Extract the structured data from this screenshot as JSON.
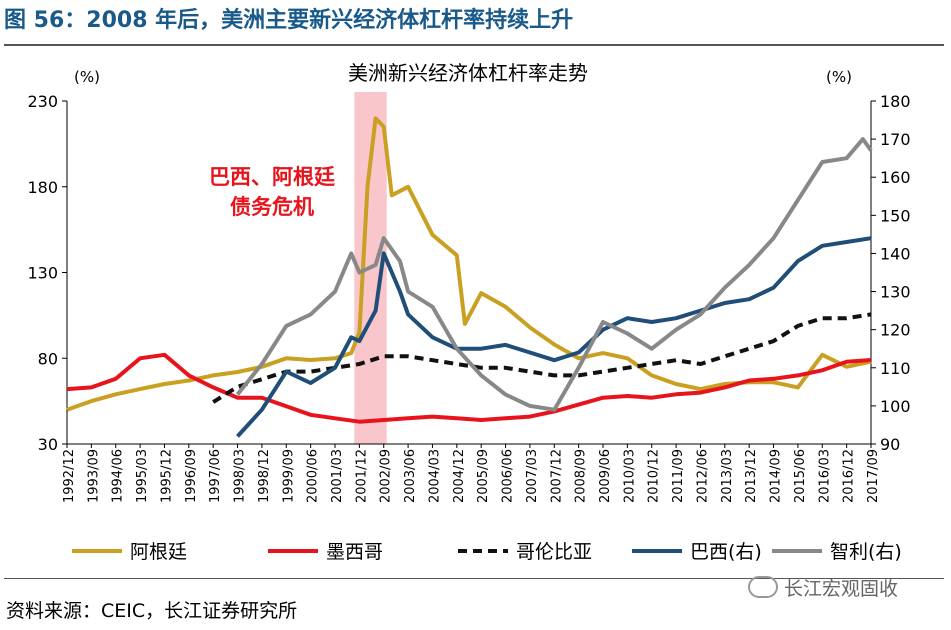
{
  "figure_title": "图 56：2008 年后，美洲主要新兴经济体杠杆率持续上升",
  "source": "资料来源：CEIC，长江证券研究所",
  "watermark": "长江宏观固收",
  "chart_data": {
    "type": "line",
    "title": "美洲新兴经济体杠杆率走势",
    "y_left_unit": "(%)",
    "y_right_unit": "(%)",
    "y_left": {
      "min": 30,
      "max": 230,
      "ticks": [
        30,
        80,
        130,
        180,
        230
      ]
    },
    "y_right": {
      "min": 90,
      "max": 180,
      "ticks": [
        90,
        100,
        110,
        120,
        130,
        140,
        150,
        160,
        170,
        180
      ]
    },
    "x_ticks": [
      "1992/12",
      "1993/09",
      "1994/06",
      "1995/03",
      "1995/12",
      "1996/09",
      "1997/06",
      "1998/03",
      "1998/12",
      "1999/09",
      "2000/06",
      "2001/03",
      "2001/12",
      "2002/09",
      "2003/06",
      "2004/03",
      "2004/12",
      "2005/09",
      "2006/06",
      "2007/03",
      "2007/12",
      "2008/09",
      "2009/06",
      "2010/03",
      "2010/12",
      "2011/09",
      "2012/06",
      "2013/03",
      "2013/12",
      "2014/09",
      "2015/06",
      "2016/03",
      "2016/12",
      "2017/09"
    ],
    "annotation": {
      "text_line1": "巴西、阿根廷",
      "text_line2": "债务危机",
      "color": "#e8141c",
      "band_start": "2001/12",
      "band_end": "2002/09",
      "band_color": "#f7b8bf"
    },
    "series": [
      {
        "name": "阿根廷",
        "axis": "left",
        "color": "#c9a021",
        "dash": false,
        "points": [
          [
            "1992/12",
            50
          ],
          [
            "1993/09",
            55
          ],
          [
            "1994/06",
            59
          ],
          [
            "1995/03",
            62
          ],
          [
            "1995/12",
            65
          ],
          [
            "1996/09",
            67
          ],
          [
            "1997/06",
            70
          ],
          [
            "1998/03",
            72
          ],
          [
            "1998/12",
            75
          ],
          [
            "1999/09",
            80
          ],
          [
            "2000/06",
            79
          ],
          [
            "2001/03",
            80
          ],
          [
            "2001/09",
            83
          ],
          [
            "2001/12",
            95
          ],
          [
            "2002/03",
            180
          ],
          [
            "2002/06",
            220
          ],
          [
            "2002/09",
            215
          ],
          [
            "2002/12",
            175
          ],
          [
            "2003/06",
            180
          ],
          [
            "2004/03",
            152
          ],
          [
            "2004/12",
            140
          ],
          [
            "2005/03",
            100
          ],
          [
            "2005/09",
            118
          ],
          [
            "2006/06",
            110
          ],
          [
            "2007/03",
            98
          ],
          [
            "2007/12",
            88
          ],
          [
            "2008/09",
            80
          ],
          [
            "2009/06",
            83
          ],
          [
            "2010/03",
            80
          ],
          [
            "2010/12",
            70
          ],
          [
            "2011/09",
            65
          ],
          [
            "2012/06",
            62
          ],
          [
            "2013/03",
            65
          ],
          [
            "2013/12",
            66
          ],
          [
            "2014/09",
            66
          ],
          [
            "2015/06",
            63
          ],
          [
            "2016/03",
            82
          ],
          [
            "2016/12",
            75
          ],
          [
            "2017/09",
            78
          ]
        ]
      },
      {
        "name": "墨西哥",
        "axis": "left",
        "color": "#e8141c",
        "dash": false,
        "points": [
          [
            "1992/12",
            62
          ],
          [
            "1993/09",
            63
          ],
          [
            "1994/06",
            68
          ],
          [
            "1995/03",
            80
          ],
          [
            "1995/12",
            82
          ],
          [
            "1996/09",
            70
          ],
          [
            "1997/06",
            63
          ],
          [
            "1998/03",
            57
          ],
          [
            "1998/12",
            57
          ],
          [
            "1999/09",
            52
          ],
          [
            "2000/06",
            47
          ],
          [
            "2001/03",
            45
          ],
          [
            "2001/12",
            43
          ],
          [
            "2002/09",
            44
          ],
          [
            "2003/06",
            45
          ],
          [
            "2004/03",
            46
          ],
          [
            "2004/12",
            45
          ],
          [
            "2005/09",
            44
          ],
          [
            "2006/06",
            45
          ],
          [
            "2007/03",
            46
          ],
          [
            "2007/12",
            49
          ],
          [
            "2008/09",
            53
          ],
          [
            "2009/06",
            57
          ],
          [
            "2010/03",
            58
          ],
          [
            "2010/12",
            57
          ],
          [
            "2011/09",
            59
          ],
          [
            "2012/06",
            60
          ],
          [
            "2013/03",
            63
          ],
          [
            "2013/12",
            67
          ],
          [
            "2014/09",
            68
          ],
          [
            "2015/06",
            70
          ],
          [
            "2016/03",
            73
          ],
          [
            "2016/12",
            78
          ],
          [
            "2017/09",
            79
          ]
        ]
      },
      {
        "name": "哥伦比亚",
        "axis": "right",
        "color": "#111111",
        "dash": true,
        "points": [
          [
            "1997/06",
            101
          ],
          [
            "1998/03",
            105
          ],
          [
            "1998/12",
            107
          ],
          [
            "1999/09",
            109
          ],
          [
            "2000/06",
            109
          ],
          [
            "2001/03",
            110
          ],
          [
            "2001/12",
            111
          ],
          [
            "2002/09",
            113
          ],
          [
            "2003/06",
            113
          ],
          [
            "2004/03",
            112
          ],
          [
            "2004/12",
            111
          ],
          [
            "2005/09",
            110
          ],
          [
            "2006/06",
            110
          ],
          [
            "2007/03",
            109
          ],
          [
            "2007/12",
            108
          ],
          [
            "2008/09",
            108
          ],
          [
            "2009/06",
            109
          ],
          [
            "2010/03",
            110
          ],
          [
            "2010/12",
            111
          ],
          [
            "2011/09",
            112
          ],
          [
            "2012/06",
            111
          ],
          [
            "2013/03",
            113
          ],
          [
            "2013/12",
            115
          ],
          [
            "2014/09",
            117
          ],
          [
            "2015/06",
            121
          ],
          [
            "2016/03",
            123
          ],
          [
            "2016/12",
            123
          ],
          [
            "2017/09",
            124
          ]
        ]
      },
      {
        "name": "巴西(右)",
        "axis": "right",
        "color": "#1f4e79",
        "dash": false,
        "points": [
          [
            "1998/03",
            92
          ],
          [
            "1998/12",
            99
          ],
          [
            "1999/09",
            109
          ],
          [
            "2000/06",
            106
          ],
          [
            "2001/03",
            110
          ],
          [
            "2001/09",
            118
          ],
          [
            "2001/12",
            117
          ],
          [
            "2002/06",
            125
          ],
          [
            "2002/09",
            140
          ],
          [
            "2003/03",
            130
          ],
          [
            "2003/06",
            124
          ],
          [
            "2004/03",
            118
          ],
          [
            "2004/12",
            115
          ],
          [
            "2005/09",
            115
          ],
          [
            "2006/06",
            116
          ],
          [
            "2007/03",
            114
          ],
          [
            "2007/12",
            112
          ],
          [
            "2008/09",
            114
          ],
          [
            "2009/06",
            120
          ],
          [
            "2010/03",
            123
          ],
          [
            "2010/12",
            122
          ],
          [
            "2011/09",
            123
          ],
          [
            "2012/06",
            125
          ],
          [
            "2013/03",
            127
          ],
          [
            "2013/12",
            128
          ],
          [
            "2014/09",
            131
          ],
          [
            "2015/06",
            138
          ],
          [
            "2016/03",
            142
          ],
          [
            "2016/12",
            143
          ],
          [
            "2017/09",
            144
          ]
        ]
      },
      {
        "name": "智利(右)",
        "axis": "right",
        "color": "#888888",
        "dash": false,
        "points": [
          [
            "1998/03",
            103
          ],
          [
            "1998/12",
            111
          ],
          [
            "1999/09",
            121
          ],
          [
            "2000/06",
            124
          ],
          [
            "2001/03",
            130
          ],
          [
            "2001/09",
            140
          ],
          [
            "2001/12",
            135
          ],
          [
            "2002/06",
            137
          ],
          [
            "2002/09",
            144
          ],
          [
            "2003/03",
            138
          ],
          [
            "2003/06",
            130
          ],
          [
            "2004/03",
            126
          ],
          [
            "2004/12",
            115
          ],
          [
            "2005/09",
            108
          ],
          [
            "2006/06",
            103
          ],
          [
            "2007/03",
            100
          ],
          [
            "2007/12",
            99
          ],
          [
            "2008/09",
            110
          ],
          [
            "2009/06",
            122
          ],
          [
            "2010/03",
            119
          ],
          [
            "2010/12",
            115
          ],
          [
            "2011/09",
            120
          ],
          [
            "2012/06",
            124
          ],
          [
            "2013/03",
            131
          ],
          [
            "2013/12",
            137
          ],
          [
            "2014/09",
            144
          ],
          [
            "2015/06",
            154
          ],
          [
            "2016/03",
            164
          ],
          [
            "2016/12",
            165
          ],
          [
            "2017/06",
            170
          ],
          [
            "2017/09",
            167
          ]
        ]
      }
    ]
  }
}
